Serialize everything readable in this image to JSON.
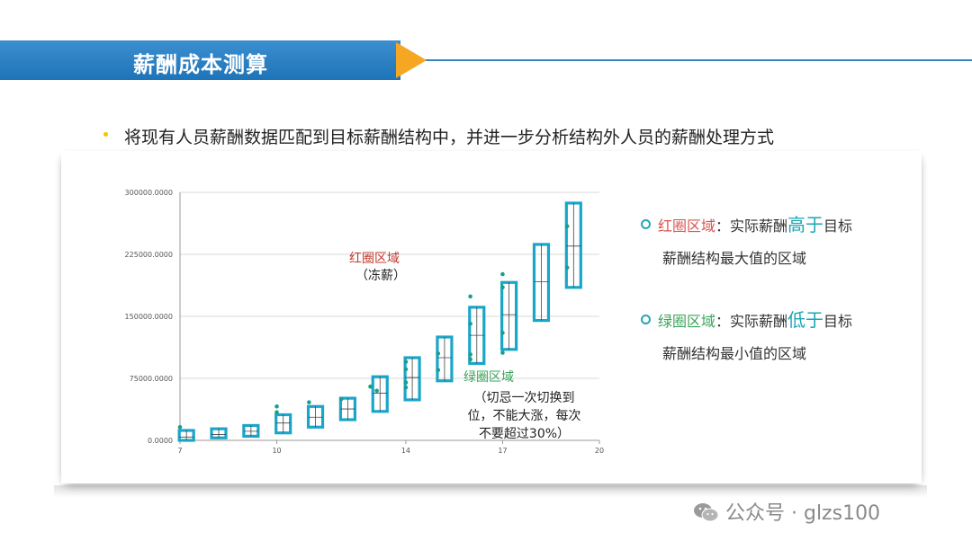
{
  "header": {
    "title": "薪酬成本测算"
  },
  "bullet": {
    "text": "将现有人员薪酬数据匹配到目标薪酬结构中，并进一步分析结构外人员的薪酬处理方式"
  },
  "chart_data": {
    "type": "box",
    "y_ticks": [
      "300000.0000",
      "225000.0000",
      "150000.0000",
      "75000.0000",
      "0.0000"
    ],
    "y_tick_values": [
      300000,
      225000,
      150000,
      75000,
      0
    ],
    "x_ticks": [
      "7",
      "10",
      "14",
      "17",
      "20"
    ],
    "x_tick_values": [
      7,
      10,
      14,
      17,
      20
    ],
    "ylim": [
      0,
      300000
    ],
    "xlim": [
      7,
      20
    ],
    "grid": true,
    "box_color": "#1aa6c9",
    "point_color": "#1a9e8c",
    "boxes": [
      {
        "x": 7.2,
        "min": 0,
        "mid": 4000,
        "max": 12000
      },
      {
        "x": 8.2,
        "min": 3000,
        "mid": 7000,
        "max": 14000
      },
      {
        "x": 9.2,
        "min": 5000,
        "mid": 11000,
        "max": 18000
      },
      {
        "x": 10.2,
        "min": 9000,
        "mid": 21000,
        "max": 31000
      },
      {
        "x": 11.2,
        "min": 16000,
        "mid": 28000,
        "max": 41000
      },
      {
        "x": 12.2,
        "min": 25000,
        "mid": 38000,
        "max": 51000
      },
      {
        "x": 13.2,
        "min": 35000,
        "mid": 57000,
        "max": 77000
      },
      {
        "x": 14.2,
        "min": 49000,
        "mid": 76000,
        "max": 100000
      },
      {
        "x": 15.2,
        "min": 72000,
        "mid": 100000,
        "max": 125000
      },
      {
        "x": 16.2,
        "min": 93000,
        "mid": 127000,
        "max": 161000
      },
      {
        "x": 17.2,
        "min": 110000,
        "mid": 152000,
        "max": 191000
      },
      {
        "x": 18.2,
        "min": 145000,
        "mid": 192000,
        "max": 237000
      },
      {
        "x": 19.2,
        "min": 185000,
        "mid": 235000,
        "max": 287000
      }
    ],
    "points": [
      {
        "x": 7.0,
        "y": 16000
      },
      {
        "x": 10.0,
        "y": 41000
      },
      {
        "x": 10.0,
        "y": 34000
      },
      {
        "x": 11.0,
        "y": 46000
      },
      {
        "x": 12.0,
        "y": 50000
      },
      {
        "x": 12.9,
        "y": 65000
      },
      {
        "x": 13.1,
        "y": 60000
      },
      {
        "x": 14.0,
        "y": 95000
      },
      {
        "x": 14.0,
        "y": 86000
      },
      {
        "x": 14.0,
        "y": 70000
      },
      {
        "x": 14.0,
        "y": 64000
      },
      {
        "x": 15.0,
        "y": 105000
      },
      {
        "x": 15.0,
        "y": 85000
      },
      {
        "x": 16.0,
        "y": 174000
      },
      {
        "x": 16.0,
        "y": 141000
      },
      {
        "x": 16.0,
        "y": 104000
      },
      {
        "x": 16.0,
        "y": 98000
      },
      {
        "x": 17.0,
        "y": 201000
      },
      {
        "x": 17.0,
        "y": 185000
      },
      {
        "x": 17.0,
        "y": 130000
      },
      {
        "x": 17.0,
        "y": 106000
      },
      {
        "x": 19.0,
        "y": 259000
      },
      {
        "x": 19.0,
        "y": 209000
      }
    ]
  },
  "annotations": {
    "red_title": "红圈区域",
    "red_sub": "（冻薪）",
    "green_title": "绿圈区域",
    "green_sub_lines": [
      "（切忌一次切换到",
      "位，不能大涨，每次",
      "不要超过30%）"
    ]
  },
  "legend": {
    "red": {
      "label": "红圈区域",
      "colon": "：实际薪酬",
      "highlight": "高于",
      "rest1": "目标",
      "rest2": "薪酬结构最大值的区域"
    },
    "green": {
      "label": "绿圈区域",
      "colon": "：实际薪酬",
      "highlight": "低于",
      "rest1": "目标",
      "rest2": "薪酬结构最小值的区域"
    }
  },
  "watermark": {
    "text": "公众号 · glzs100"
  }
}
